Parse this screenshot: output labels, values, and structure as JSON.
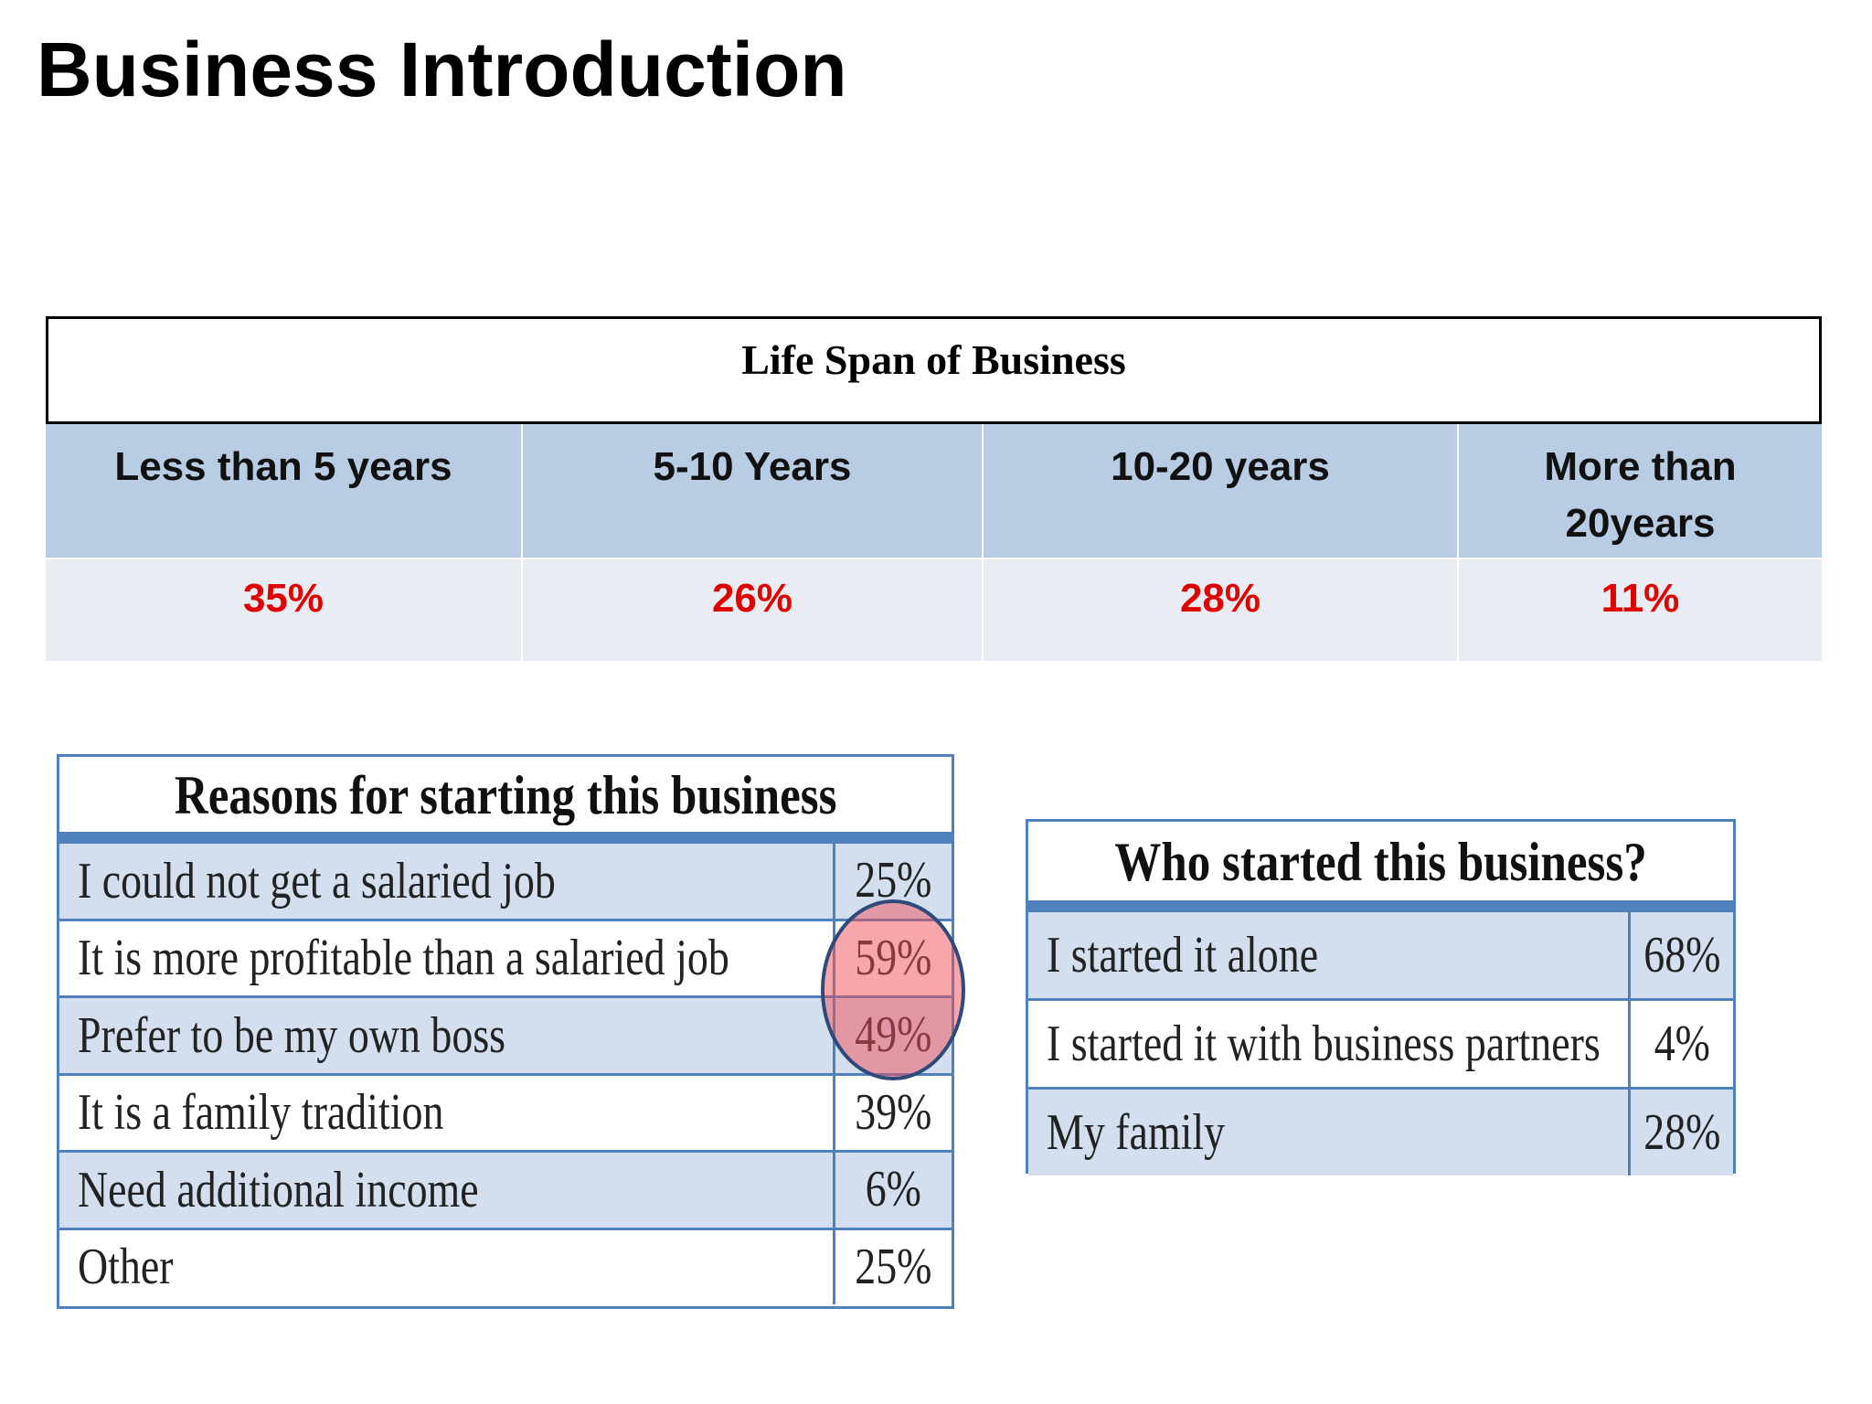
{
  "title": "Business Introduction",
  "life_span": {
    "title": "Life Span of Business",
    "headers": [
      "Less than 5 years",
      "5-10 Years",
      "10-20 years",
      "More than 20years"
    ],
    "values": [
      "35%",
      "26%",
      "28%",
      "11%"
    ]
  },
  "reasons": {
    "title": "Reasons for starting this business",
    "rows": [
      [
        "I could not get a salaried job",
        "25%"
      ],
      [
        "It is more profitable than a salaried job",
        "59%"
      ],
      [
        "Prefer to be my own boss",
        "49%"
      ],
      [
        "It is a family tradition",
        "39%"
      ],
      [
        "Need additional income",
        "6%"
      ],
      [
        "Other",
        "25%"
      ]
    ]
  },
  "founders": {
    "title": "Who started this business?",
    "rows": [
      [
        "I started it alone",
        "68%"
      ],
      [
        "I started it with business partners",
        "4%"
      ],
      [
        "My family",
        "28%"
      ]
    ]
  }
}
